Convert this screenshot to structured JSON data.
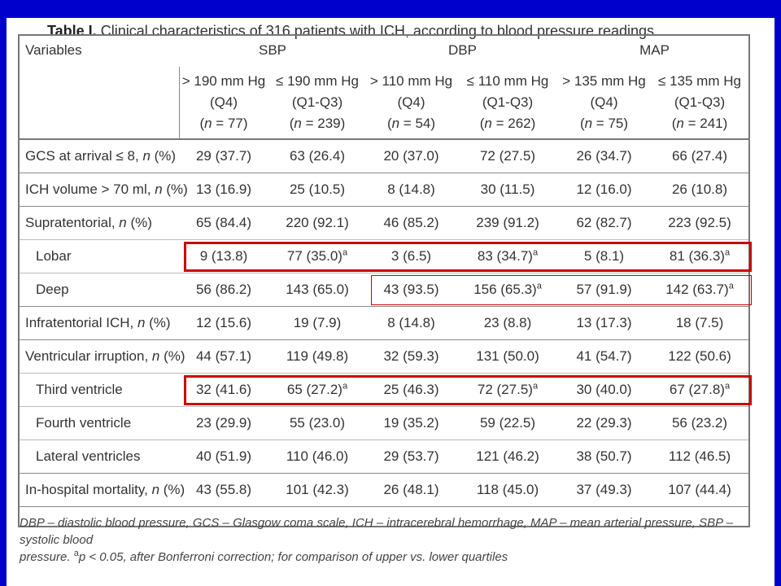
{
  "caption": {
    "label": "Table I.",
    "text": "Clinical characteristics of 316 patients with ICH, according to blood pressure readings"
  },
  "header": {
    "variables": "Variables",
    "groups": [
      "SBP",
      "DBP",
      "MAP"
    ],
    "subcols": [
      {
        "l1": "> 190 mm Hg",
        "l2": "(Q4)",
        "n": "77"
      },
      {
        "l1": "≤ 190 mm Hg",
        "l2": "(Q1-Q3)",
        "n": "239"
      },
      {
        "l1": "> 110 mm Hg",
        "l2": "(Q4)",
        "n": "54"
      },
      {
        "l1": "≤ 110 mm Hg",
        "l2": "(Q1-Q3)",
        "n": "262"
      },
      {
        "l1": "> 135 mm Hg",
        "l2": "(Q4)",
        "n": "75"
      },
      {
        "l1": "≤ 135 mm Hg",
        "l2": "(Q1-Q3)",
        "n": "241"
      }
    ]
  },
  "rows": [
    {
      "label": "GCS at arrival ≤ 8, ",
      "unit": "n",
      "suffix": " (%)",
      "sub": false,
      "cells": [
        "29 (37.7)",
        "63 (26.4)",
        "20 (37.0)",
        "72 (27.5)",
        "26 (34.7)",
        "66 (27.4)"
      ],
      "sup": [
        false,
        false,
        false,
        false,
        false,
        false
      ]
    },
    {
      "label": "ICH volume > 70 ml, ",
      "unit": "n",
      "suffix": " (%)",
      "sub": false,
      "cells": [
        "13 (16.9)",
        "25 (10.5)",
        "8 (14.8)",
        "30 (11.5)",
        "12 (16.0)",
        "26 (10.8)"
      ],
      "sup": [
        false,
        false,
        false,
        false,
        false,
        false
      ]
    },
    {
      "label": "Supratentorial, ",
      "unit": "n",
      "suffix": " (%)",
      "sub": false,
      "cells": [
        "65 (84.4)",
        "220 (92.1)",
        "46 (85.2)",
        "239 (91.2)",
        "62 (82.7)",
        "223 (92.5)"
      ],
      "sup": [
        false,
        false,
        false,
        false,
        false,
        false
      ]
    },
    {
      "label": "Lobar",
      "unit": "",
      "suffix": "",
      "sub": true,
      "cells": [
        "9 (13.8)",
        "77 (35.0)",
        "3 (6.5)",
        "83 (34.7)",
        "5 (8.1)",
        "81 (36.3)"
      ],
      "sup": [
        false,
        true,
        false,
        true,
        false,
        true
      ]
    },
    {
      "label": "Deep",
      "unit": "",
      "suffix": "",
      "sub": true,
      "cells": [
        "56 (86.2)",
        "143 (65.0)",
        "43 (93.5)",
        "156 (65.3)",
        "57 (91.9)",
        "142 (63.7)"
      ],
      "sup": [
        false,
        false,
        false,
        true,
        false,
        true
      ]
    },
    {
      "label": "Infratentorial ICH, ",
      "unit": "n",
      "suffix": " (%)",
      "sub": false,
      "cells": [
        "12 (15.6)",
        "19 (7.9)",
        "8 (14.8)",
        "23 (8.8)",
        "13 (17.3)",
        "18 (7.5)"
      ],
      "sup": [
        false,
        false,
        false,
        false,
        false,
        false
      ]
    },
    {
      "label": "Ventricular irruption, ",
      "unit": "n",
      "suffix": " (%)",
      "sub": false,
      "cells": [
        "44 (57.1)",
        "119 (49.8)",
        "32 (59.3)",
        "131 (50.0)",
        "41 (54.7)",
        "122 (50.6)"
      ],
      "sup": [
        false,
        false,
        false,
        false,
        false,
        false
      ]
    },
    {
      "label": "Third ventricle",
      "unit": "",
      "suffix": "",
      "sub": true,
      "cells": [
        "32 (41.6)",
        "65 (27.2)",
        "25 (46.3)",
        "72 (27.5)",
        "30 (40.0)",
        "67 (27.8)"
      ],
      "sup": [
        false,
        true,
        false,
        true,
        false,
        true
      ]
    },
    {
      "label": "Fourth ventricle",
      "unit": "",
      "suffix": "",
      "sub": true,
      "cells": [
        "23 (29.9)",
        "55 (23.0)",
        "19 (35.2)",
        "59 (22.5)",
        "22 (29.3)",
        "56 (23.2)"
      ],
      "sup": [
        false,
        false,
        false,
        false,
        false,
        false
      ]
    },
    {
      "label": "Lateral ventricles",
      "unit": "",
      "suffix": "",
      "sub": true,
      "cells": [
        "40 (51.9)",
        "110 (46.0)",
        "29 (53.7)",
        "121 (46.2)",
        "38 (50.7)",
        "112 (46.5)"
      ],
      "sup": [
        false,
        false,
        false,
        false,
        false,
        false
      ]
    },
    {
      "label": "In-hospital mortality, ",
      "unit": "n",
      "suffix": " (%)",
      "sub": false,
      "cells": [
        "43 (55.8)",
        "101 (42.3)",
        "26 (48.1)",
        "118 (45.0)",
        "37 (49.3)",
        "107 (44.4)"
      ],
      "sup": [
        false,
        false,
        false,
        false,
        false,
        false
      ]
    }
  ],
  "superscript": "a",
  "n_label": "n",
  "footnote": {
    "line1": "DBP – diastolic blood pressure, GCS – Glasgow coma scale, ICH – intracerebral hemorrhage, MAP – mean arterial pressure, SBP – systolic blood",
    "line2a": "pressure. ",
    "sup": "a",
    "line2b": "p < 0.05, after Bonferroni correction; for comparison of upper vs. lower quartiles"
  },
  "colors": {
    "background": "#0000cc",
    "highlight": "#cc0000"
  }
}
